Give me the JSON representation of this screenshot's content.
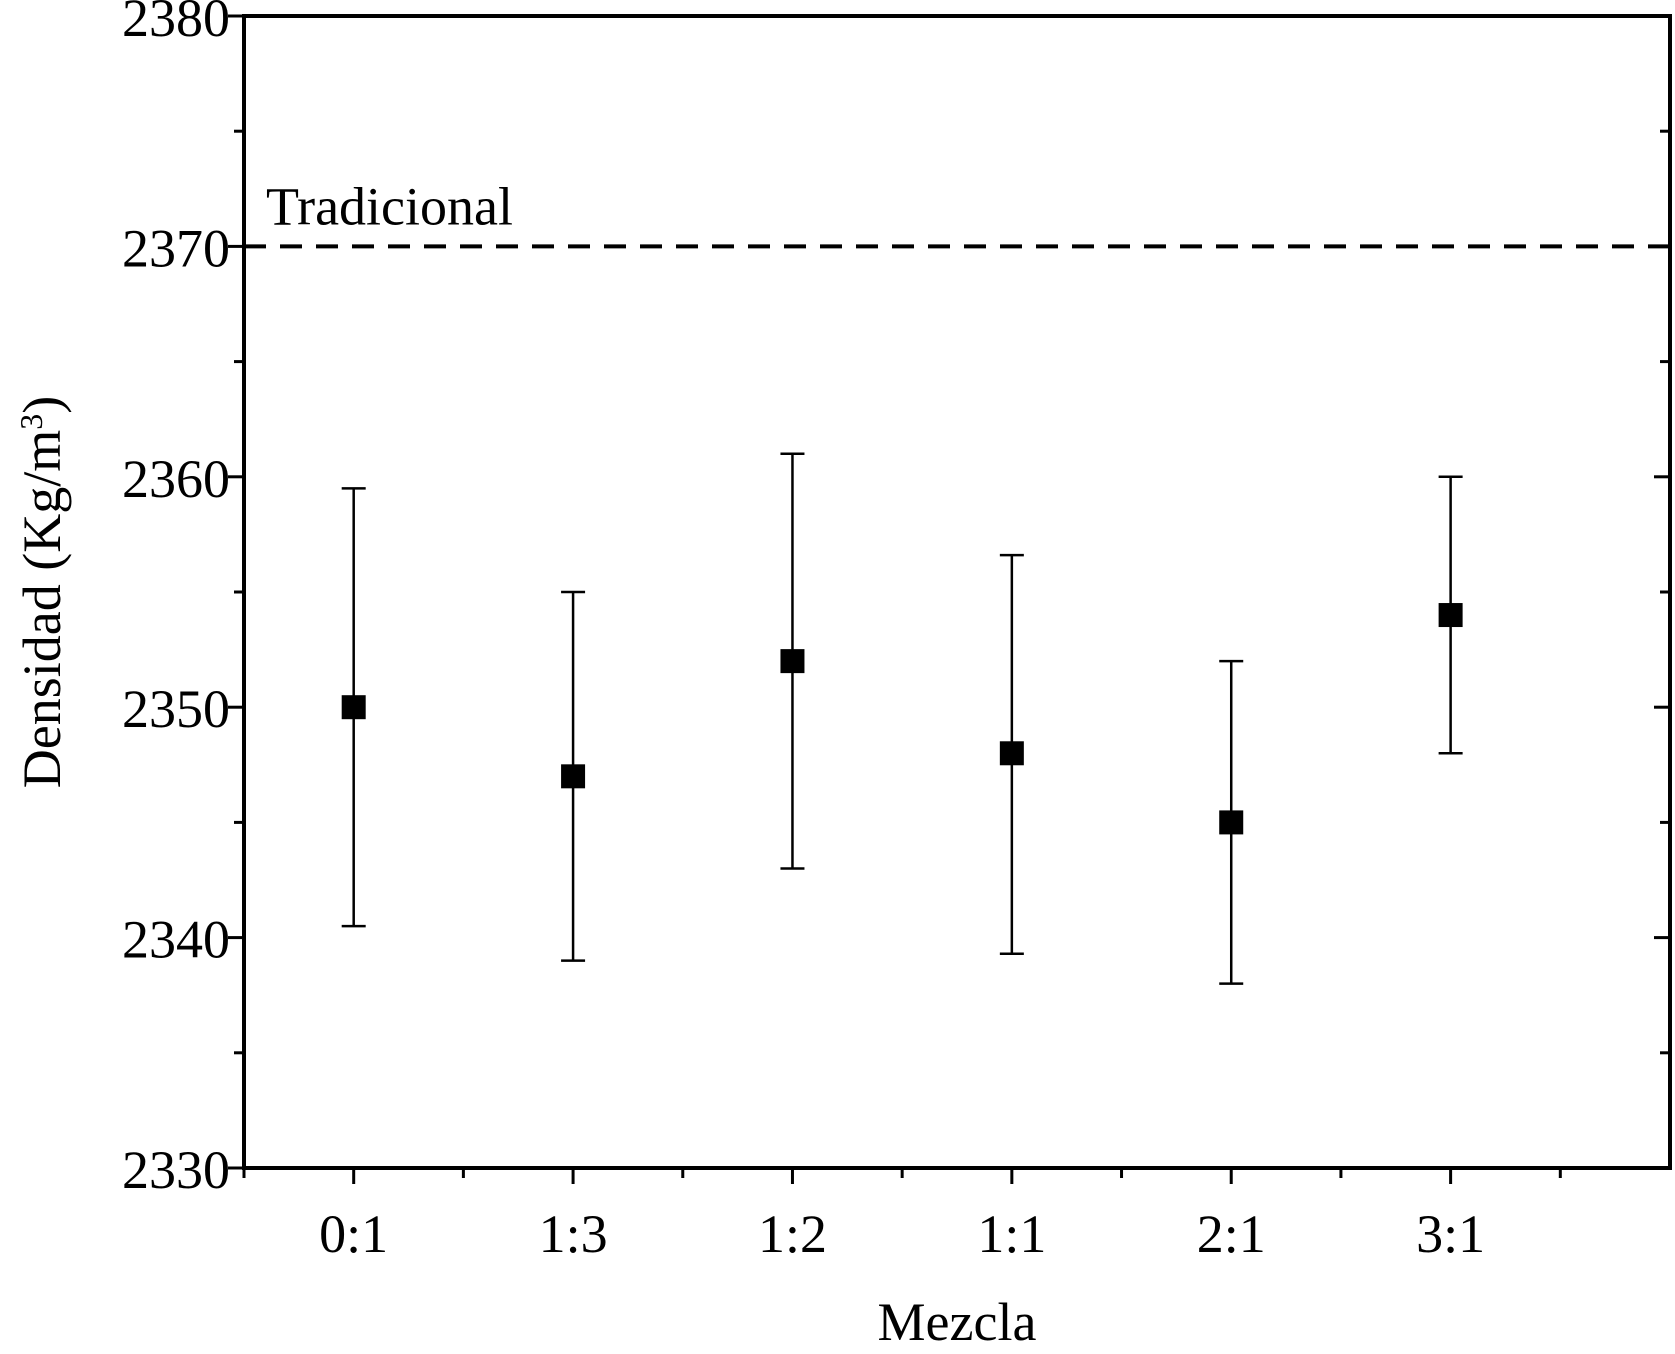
{
  "chart_data": {
    "type": "scatter",
    "title": "",
    "xlabel": "Mezcla",
    "ylabel": "Densidad (Kg/m",
    "ylabel_superscript": "3",
    "ylabel_close": ")",
    "categories": [
      "0:1",
      "1:3",
      "1:2",
      "1:1",
      "2:1",
      "3:1"
    ],
    "values": [
      2350,
      2347,
      2352,
      2348,
      2345,
      2354
    ],
    "error_low": [
      2340.5,
      2339,
      2343,
      2339.3,
      2338,
      2348
    ],
    "error_high": [
      2359.5,
      2355,
      2361,
      2356.6,
      2352,
      2360
    ],
    "ylim": [
      2330,
      2380
    ],
    "yticks": [
      "2330",
      "2340",
      "2350",
      "2360",
      "2370",
      "2380"
    ],
    "reference_line": {
      "value": 2370,
      "label": "Tradicional",
      "style": "dashed"
    },
    "grid": false,
    "marker": "square",
    "color": "#000000"
  }
}
